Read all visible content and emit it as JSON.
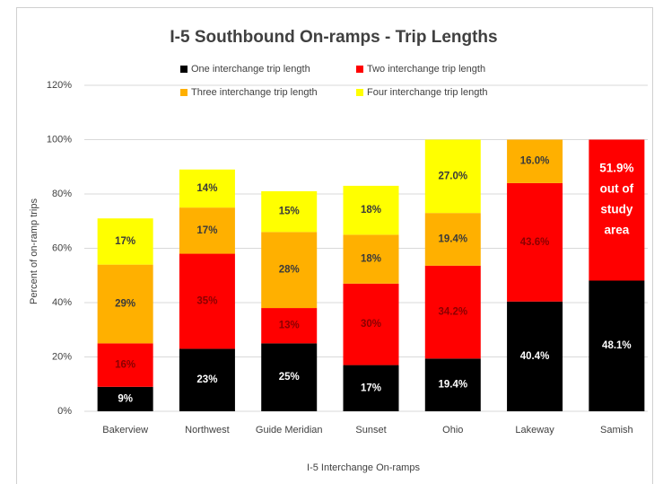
{
  "chart_data": {
    "type": "stacked_bar",
    "title": "I-5 Southbound On-ramps -  Trip Lengths",
    "x_label": "I-5 Interchange On-ramps",
    "y_label": "Percent of on-ramp trips",
    "categories": [
      "Bakerview",
      "Northwest",
      "Guide Meridian",
      "Sunset",
      "Ohio",
      "Lakeway",
      "Samish"
    ],
    "series": [
      {
        "name": "One interchange trip length",
        "color": "#000000",
        "values": [
          9,
          23,
          25,
          17,
          19.4,
          40.4,
          48.1
        ],
        "value_labels": [
          "9%",
          "23%",
          "25%",
          "17%",
          "19.4%",
          "40.4%",
          "48.1%"
        ]
      },
      {
        "name": "Two interchange trip length",
        "color": "#ff0000",
        "values": [
          16,
          35,
          13,
          30,
          34.2,
          43.6,
          51.9
        ],
        "value_labels": [
          "16%",
          "35%",
          "13%",
          "30%",
          "34.2%",
          "43.6%",
          "51.9%\nout of\nstudy\narea"
        ]
      },
      {
        "name": "Three interchange trip length",
        "color": "#ffb000",
        "values": [
          29,
          17,
          28,
          18,
          19.4,
          16,
          null
        ],
        "value_labels": [
          "29%",
          "17%",
          "28%",
          "18%",
          "19.4%",
          "16.0%",
          null
        ]
      },
      {
        "name": "Four interchange trip length",
        "color": "#ffff00",
        "values": [
          17,
          14,
          15,
          18,
          27,
          null,
          null
        ],
        "value_labels": [
          "17%",
          "14%",
          "15%",
          "18%",
          "27.0%",
          null,
          null
        ]
      }
    ],
    "ylim": [
      0,
      120
    ],
    "yticks": [
      {
        "value": 0,
        "label": "0%"
      },
      {
        "value": 20,
        "label": "20%"
      },
      {
        "value": 40,
        "label": "40%"
      },
      {
        "value": 60,
        "label": "60%"
      },
      {
        "value": 80,
        "label": "80%"
      },
      {
        "value": 100,
        "label": "100%"
      },
      {
        "value": 120,
        "label": "120%"
      }
    ],
    "grid": true,
    "legend": "top"
  }
}
